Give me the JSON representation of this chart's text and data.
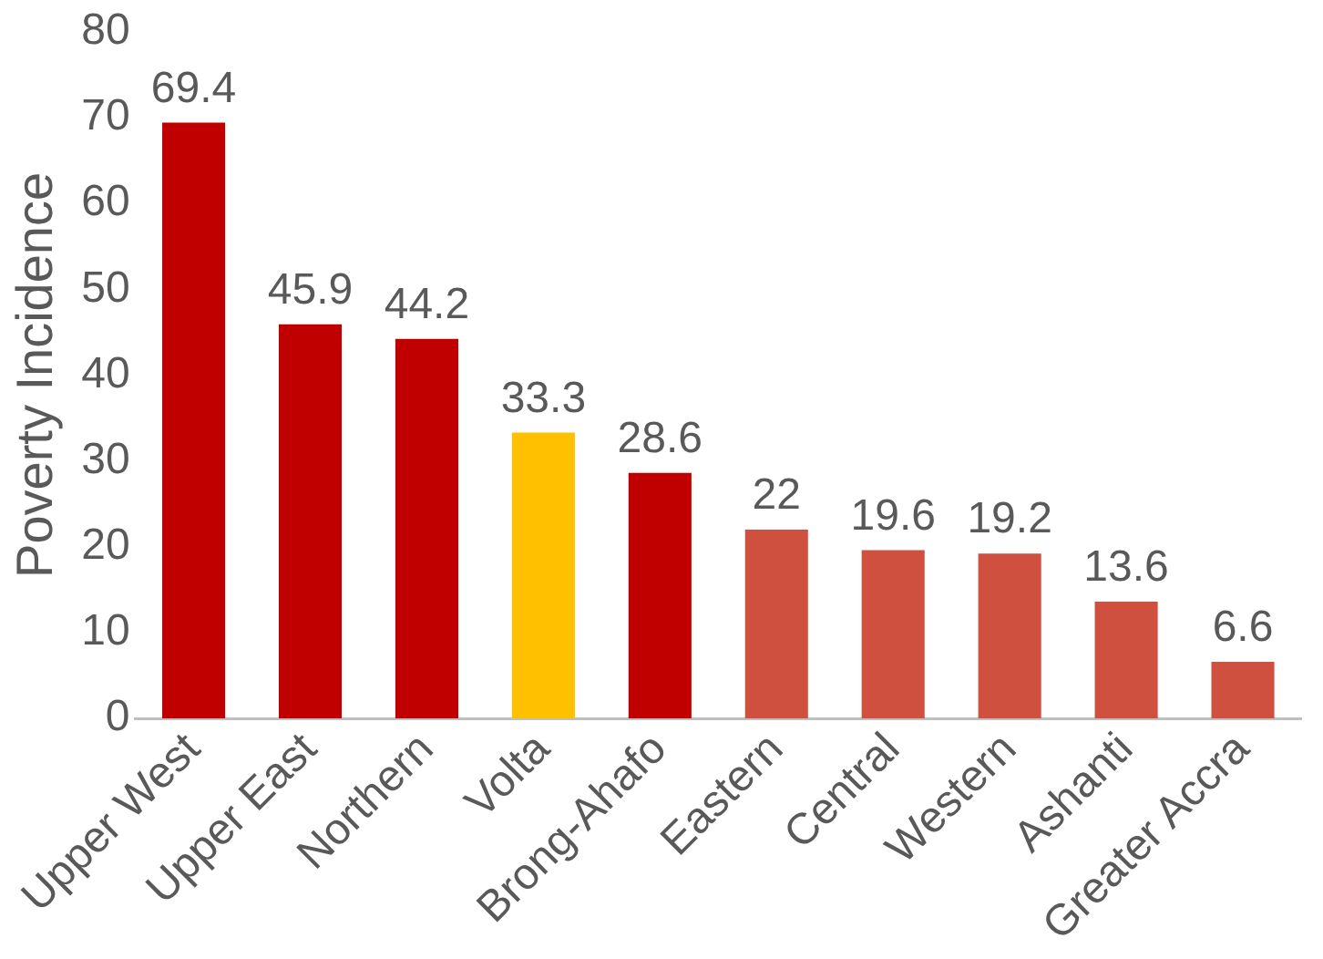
{
  "chart_data": {
    "type": "bar",
    "ylabel": "Poverty Incidence",
    "categories": [
      "Upper West",
      "Upper East",
      "Northern",
      "Volta",
      "Brong-Ahafo",
      "Eastern",
      "Central",
      "Western",
      "Ashanti",
      "Greater Accra"
    ],
    "values": [
      69.4,
      45.9,
      44.2,
      33.3,
      28.6,
      22,
      19.6,
      19.2,
      13.6,
      6.6
    ],
    "colors": [
      "#c00000",
      "#c00000",
      "#c00000",
      "#ffc000",
      "#c00000",
      "#d05040",
      "#d05040",
      "#d05040",
      "#d05040",
      "#d05040"
    ],
    "ylim": [
      0,
      80
    ],
    "yticks": [
      0,
      10,
      20,
      30,
      40,
      50,
      60,
      70,
      80
    ],
    "grid": false,
    "legend": false,
    "data_labels": true
  }
}
